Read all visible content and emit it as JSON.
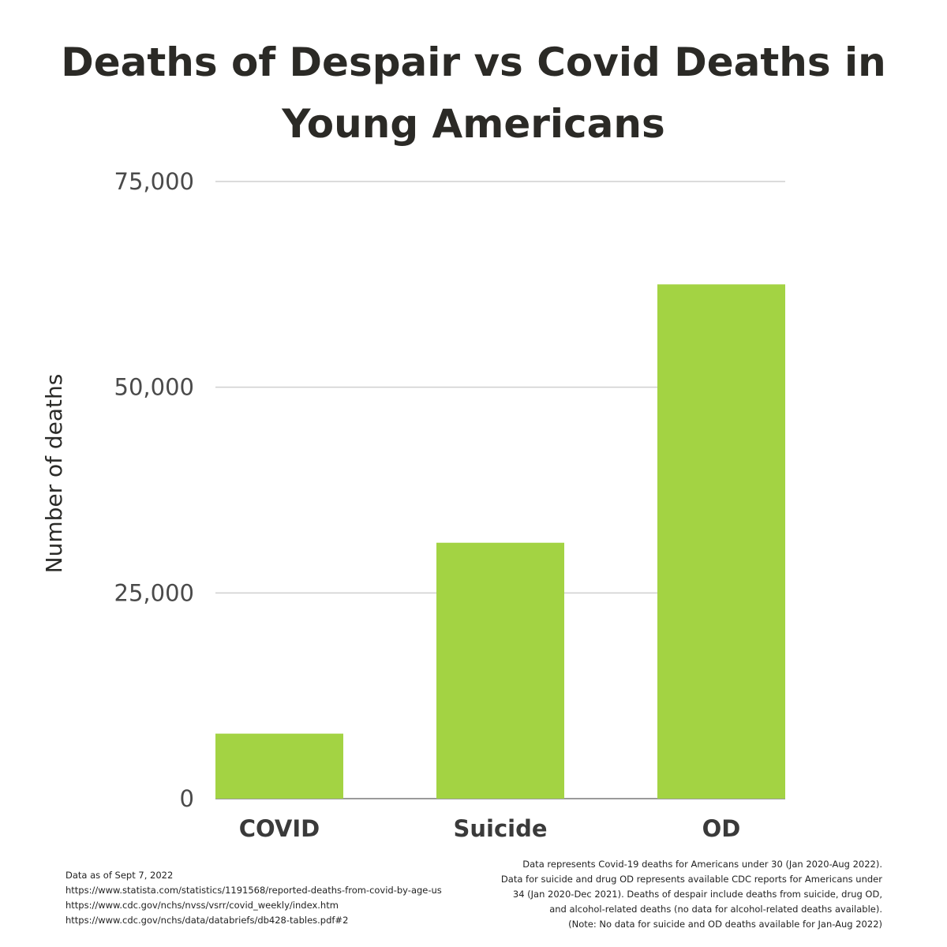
{
  "chart_data": {
    "type": "bar",
    "title": "Deaths of Despair vs Covid Deaths in Young Americans",
    "ylabel": "Number of deaths",
    "xlabel": "",
    "categories": [
      "COVID",
      "Suicide",
      "OD"
    ],
    "values": [
      7900,
      31100,
      62500
    ],
    "ylim": [
      0,
      75000
    ],
    "yticks": [
      0,
      25000,
      50000,
      75000
    ],
    "ytick_labels": [
      "0",
      "25,000",
      "50,000",
      "75,000"
    ],
    "bar_color": "#a3d343",
    "grid": true,
    "legend": "none"
  },
  "footnotes": {
    "left": [
      "Data as of Sept 7, 2022",
      "https://www.statista.com/statistics/1191568/reported-deaths-from-covid-by-age-us",
      "https://www.cdc.gov/nchs/nvss/vsrr/covid_weekly/index.htm",
      "https://www.cdc.gov/nchs/data/databriefs/db428-tables.pdf#2"
    ],
    "right": [
      "Data represents Covid-19 deaths for Americans under 30 (Jan 2020-Aug 2022).",
      "Data for suicide and drug OD represents available CDC reports for Americans under",
      "34 (Jan 2020-Dec 2021). Deaths of despair include deaths from suicide, drug OD,",
      "and alcohol-related deaths (no data for alcohol-related deaths available).",
      "(Note: No data for suicide and OD deaths available for Jan-Aug 2022)"
    ]
  }
}
